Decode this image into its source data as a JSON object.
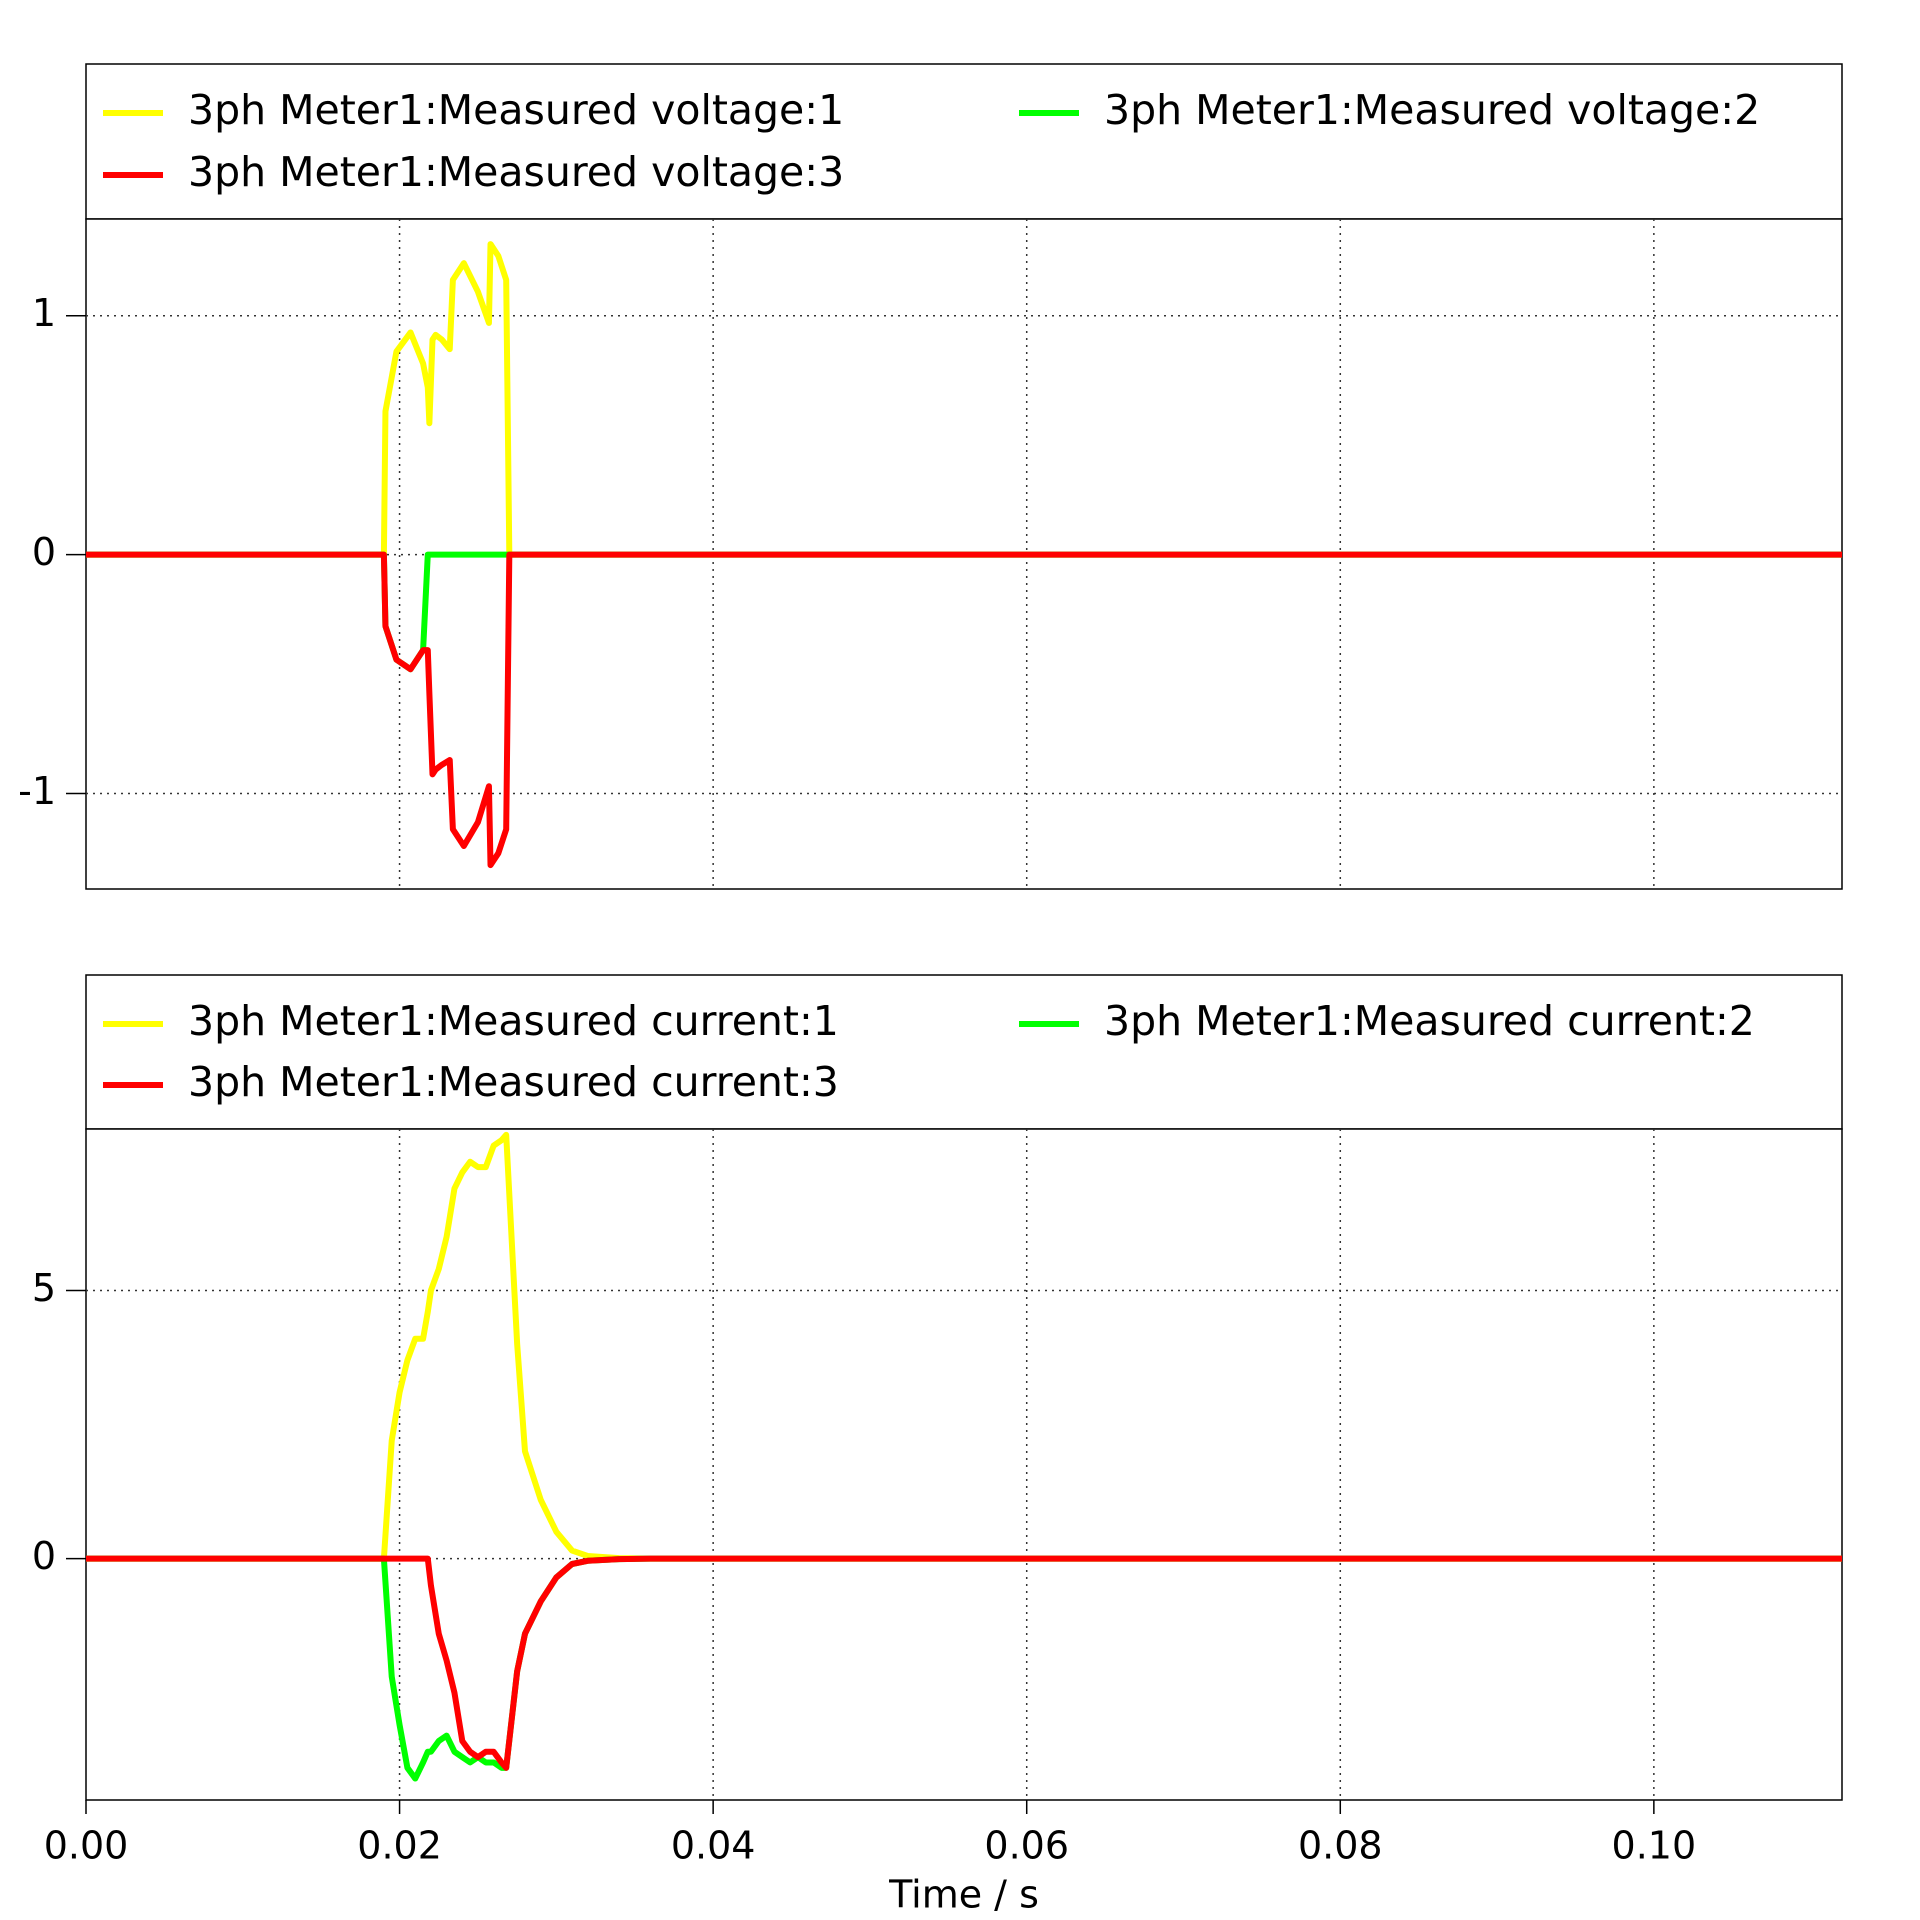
{
  "chart_data": [
    {
      "type": "line",
      "x": [
        0,
        0.019,
        0.0191,
        0.0198,
        0.0207,
        0.0215,
        0.0218,
        0.0219,
        0.0221,
        0.0223,
        0.0227,
        0.0232,
        0.0234,
        0.0241,
        0.025,
        0.0257,
        0.0258,
        0.0263,
        0.0268,
        0.027,
        0.112
      ],
      "series": [
        {
          "name": "3ph Meter1:Measured voltage:1",
          "color": "#ffff00",
          "values": [
            0,
            0,
            0.6,
            0.85,
            0.93,
            0.8,
            0.7,
            0.55,
            0.9,
            0.92,
            0.9,
            0.86,
            1.15,
            1.22,
            1.1,
            0.97,
            1.3,
            1.25,
            1.15,
            0,
            0
          ]
        },
        {
          "name": "3ph Meter1:Measured voltage:2",
          "color": "#00ff00",
          "values": [
            0,
            0,
            -0.3,
            -0.44,
            -0.48,
            -0.4,
            0,
            0,
            0,
            0,
            0,
            0,
            0,
            0,
            0,
            0,
            0,
            0,
            0,
            0,
            0
          ]
        },
        {
          "name": "3ph Meter1:Measured voltage:3",
          "color": "#ff0000",
          "values": [
            0,
            0,
            -0.3,
            -0.44,
            -0.48,
            -0.4,
            -0.4,
            -0.58,
            -0.92,
            -0.9,
            -0.88,
            -0.86,
            -1.15,
            -1.22,
            -1.12,
            -0.97,
            -1.3,
            -1.25,
            -1.15,
            0,
            0
          ]
        }
      ],
      "xlim": [
        0,
        0.112
      ],
      "xticks": [
        0,
        0.02,
        0.04,
        0.06,
        0.08,
        0.1
      ],
      "ylim": [
        -1.4,
        1.405
      ],
      "yticks": [
        -1,
        0,
        1
      ],
      "grid": true
    },
    {
      "type": "line",
      "x": [
        0,
        0.019,
        0.0195,
        0.02,
        0.0205,
        0.021,
        0.0215,
        0.0218,
        0.022,
        0.0225,
        0.023,
        0.0235,
        0.024,
        0.0245,
        0.025,
        0.0255,
        0.026,
        0.0265,
        0.0268,
        0.0275,
        0.028,
        0.029,
        0.03,
        0.031,
        0.032,
        0.034,
        0.036,
        0.112
      ],
      "series": [
        {
          "name": "3ph Meter1:Measured current:1",
          "color": "#ffff00",
          "values": [
            0,
            0,
            2.2,
            3.1,
            3.7,
            4.1,
            4.1,
            4.6,
            5.0,
            5.4,
            6.0,
            6.9,
            7.2,
            7.4,
            7.3,
            7.3,
            7.7,
            7.8,
            7.9,
            4.0,
            2.0,
            1.1,
            0.5,
            0.15,
            0.05,
            0.01,
            0,
            0
          ]
        },
        {
          "name": "3ph Meter1:Measured current:2",
          "color": "#00ff00",
          "values": [
            0,
            0,
            -2.2,
            -3.1,
            -3.9,
            -4.1,
            -3.8,
            -3.6,
            -3.6,
            -3.4,
            -3.3,
            -3.6,
            -3.7,
            -3.8,
            -3.7,
            -3.8,
            -3.8,
            -3.9,
            -3.9,
            -2.1,
            -1.4,
            -0.8,
            -0.35,
            -0.1,
            -0.04,
            -0.01,
            0,
            0
          ]
        },
        {
          "name": "3ph Meter1:Measured current:3",
          "color": "#ff0000",
          "values": [
            0,
            0,
            0,
            0,
            0,
            0,
            0,
            0,
            -0.5,
            -1.4,
            -1.9,
            -2.5,
            -3.4,
            -3.6,
            -3.7,
            -3.6,
            -3.6,
            -3.8,
            -3.9,
            -2.1,
            -1.4,
            -0.8,
            -0.35,
            -0.1,
            -0.04,
            -0.01,
            0,
            0
          ]
        }
      ],
      "xlim": [
        0,
        0.112
      ],
      "xticks": [
        {
          "value": 0,
          "label": "0.00"
        },
        {
          "value": 0.02,
          "label": "0.02"
        },
        {
          "value": 0.04,
          "label": "0.04"
        },
        {
          "value": 0.06,
          "label": "0.06"
        },
        {
          "value": 0.08,
          "label": "0.08"
        },
        {
          "value": 0.1,
          "label": "0.10"
        }
      ],
      "x_label": "Time / s",
      "ylim": [
        -4.5,
        8.01
      ],
      "yticks": [
        0,
        5
      ],
      "grid": true
    }
  ]
}
